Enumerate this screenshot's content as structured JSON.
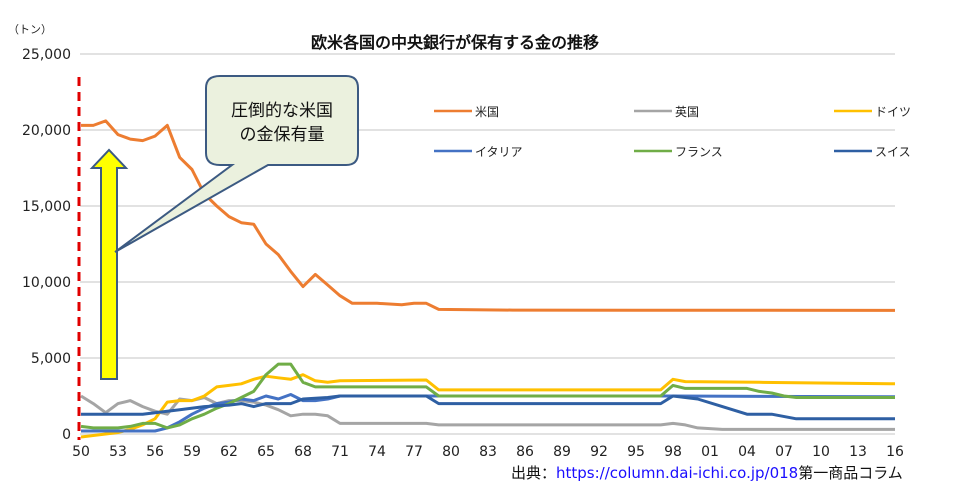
{
  "chart_data": {
    "type": "line",
    "title": "欧米各国の中央銀行が保有する金の推移",
    "ylabel": "（トン）",
    "xlabel": "",
    "xlim": [
      1950,
      2016
    ],
    "ylim": [
      0,
      25000
    ],
    "grid": true,
    "legend_position": "top-right",
    "yticks": [
      0,
      5000,
      10000,
      15000,
      20000,
      25000
    ],
    "ytick_labels": [
      "0",
      "5,000",
      "10,000",
      "15,000",
      "20,000",
      "25,000"
    ],
    "xticks": [
      1950,
      1953,
      1956,
      1959,
      1962,
      1965,
      1968,
      1971,
      1974,
      1977,
      1980,
      1983,
      1986,
      1989,
      1992,
      1995,
      1998,
      2001,
      2004,
      2007,
      2010,
      2013,
      2016
    ],
    "xtick_labels": [
      "50",
      "53",
      "56",
      "59",
      "62",
      "65",
      "68",
      "71",
      "74",
      "77",
      "80",
      "83",
      "86",
      "89",
      "92",
      "95",
      "98",
      "01",
      "04",
      "07",
      "10",
      "13",
      "16"
    ],
    "series": [
      {
        "name": "米国",
        "color": "#ed7d31",
        "points": [
          [
            1950,
            20300
          ],
          [
            1951,
            20300
          ],
          [
            1952,
            20600
          ],
          [
            1953,
            19700
          ],
          [
            1954,
            19400
          ],
          [
            1955,
            19300
          ],
          [
            1956,
            19600
          ],
          [
            1957,
            20300
          ],
          [
            1958,
            18200
          ],
          [
            1959,
            17400
          ],
          [
            1960,
            15800
          ],
          [
            1961,
            15000
          ],
          [
            1962,
            14300
          ],
          [
            1963,
            13900
          ],
          [
            1964,
            13800
          ],
          [
            1965,
            12500
          ],
          [
            1966,
            11800
          ],
          [
            1967,
            10700
          ],
          [
            1968,
            9700
          ],
          [
            1969,
            10500
          ],
          [
            1970,
            9800
          ],
          [
            1971,
            9100
          ],
          [
            1972,
            8600
          ],
          [
            1974,
            8600
          ],
          [
            1976,
            8500
          ],
          [
            1977,
            8600
          ],
          [
            1978,
            8600
          ],
          [
            1979,
            8200
          ],
          [
            1985,
            8150
          ],
          [
            2016,
            8130
          ]
        ]
      },
      {
        "name": "英国",
        "color": "#a5a5a5",
        "points": [
          [
            1950,
            2500
          ],
          [
            1951,
            2000
          ],
          [
            1952,
            1400
          ],
          [
            1953,
            2000
          ],
          [
            1954,
            2200
          ],
          [
            1955,
            1800
          ],
          [
            1956,
            1500
          ],
          [
            1957,
            1300
          ],
          [
            1958,
            2300
          ],
          [
            1959,
            2200
          ],
          [
            1960,
            2400
          ],
          [
            1961,
            2000
          ],
          [
            1962,
            2200
          ],
          [
            1963,
            2200
          ],
          [
            1964,
            2100
          ],
          [
            1965,
            1900
          ],
          [
            1966,
            1600
          ],
          [
            1967,
            1200
          ],
          [
            1968,
            1300
          ],
          [
            1969,
            1300
          ],
          [
            1970,
            1200
          ],
          [
            1971,
            700
          ],
          [
            1978,
            700
          ],
          [
            1979,
            600
          ],
          [
            1997,
            600
          ],
          [
            1998,
            700
          ],
          [
            1999,
            600
          ],
          [
            2000,
            400
          ],
          [
            2002,
            300
          ],
          [
            2016,
            300
          ]
        ]
      },
      {
        "name": "ドイツ",
        "color": "#ffc000",
        "points": [
          [
            1950,
            -200
          ],
          [
            1951,
            -100
          ],
          [
            1952,
            0
          ],
          [
            1953,
            100
          ],
          [
            1954,
            300
          ],
          [
            1955,
            600
          ],
          [
            1956,
            1000
          ],
          [
            1957,
            2100
          ],
          [
            1958,
            2200
          ],
          [
            1959,
            2200
          ],
          [
            1960,
            2500
          ],
          [
            1961,
            3100
          ],
          [
            1962,
            3200
          ],
          [
            1963,
            3300
          ],
          [
            1964,
            3600
          ],
          [
            1965,
            3800
          ],
          [
            1966,
            3700
          ],
          [
            1967,
            3600
          ],
          [
            1968,
            3900
          ],
          [
            1969,
            3500
          ],
          [
            1970,
            3400
          ],
          [
            1971,
            3500
          ],
          [
            1978,
            3550
          ],
          [
            1979,
            2900
          ],
          [
            1997,
            2900
          ],
          [
            1998,
            3600
          ],
          [
            1999,
            3450
          ],
          [
            2005,
            3400
          ],
          [
            2016,
            3300
          ]
        ]
      },
      {
        "name": "イタリア",
        "color": "#4472c4",
        "points": [
          [
            1950,
            200
          ],
          [
            1956,
            200
          ],
          [
            1957,
            400
          ],
          [
            1958,
            800
          ],
          [
            1959,
            1300
          ],
          [
            1960,
            1700
          ],
          [
            1961,
            2000
          ],
          [
            1962,
            2100
          ],
          [
            1963,
            2300
          ],
          [
            1964,
            2200
          ],
          [
            1965,
            2500
          ],
          [
            1966,
            2300
          ],
          [
            1967,
            2600
          ],
          [
            1968,
            2200
          ],
          [
            1969,
            2200
          ],
          [
            1970,
            2300
          ],
          [
            1971,
            2500
          ],
          [
            1978,
            2500
          ],
          [
            1997,
            2500
          ],
          [
            1998,
            2500
          ],
          [
            2016,
            2450
          ]
        ]
      },
      {
        "name": "フランス",
        "color": "#70ad47",
        "points": [
          [
            1950,
            500
          ],
          [
            1951,
            400
          ],
          [
            1953,
            400
          ],
          [
            1954,
            500
          ],
          [
            1955,
            700
          ],
          [
            1956,
            700
          ],
          [
            1957,
            400
          ],
          [
            1958,
            600
          ],
          [
            1959,
            1000
          ],
          [
            1960,
            1300
          ],
          [
            1961,
            1700
          ],
          [
            1962,
            2000
          ],
          [
            1963,
            2400
          ],
          [
            1964,
            2800
          ],
          [
            1965,
            3900
          ],
          [
            1966,
            4600
          ],
          [
            1967,
            4600
          ],
          [
            1968,
            3400
          ],
          [
            1969,
            3100
          ],
          [
            1978,
            3100
          ],
          [
            1979,
            2500
          ],
          [
            1997,
            2500
          ],
          [
            1998,
            3200
          ],
          [
            1999,
            3000
          ],
          [
            2004,
            3000
          ],
          [
            2005,
            2800
          ],
          [
            2006,
            2700
          ],
          [
            2007,
            2500
          ],
          [
            2008,
            2400
          ],
          [
            2016,
            2400
          ]
        ]
      },
      {
        "name": "スイス",
        "color": "#2e5fa3",
        "points": [
          [
            1950,
            1300
          ],
          [
            1955,
            1300
          ],
          [
            1956,
            1400
          ],
          [
            1957,
            1500
          ],
          [
            1958,
            1600
          ],
          [
            1960,
            1800
          ],
          [
            1962,
            1900
          ],
          [
            1963,
            2000
          ],
          [
            1964,
            1800
          ],
          [
            1965,
            2000
          ],
          [
            1967,
            2000
          ],
          [
            1968,
            2300
          ],
          [
            1970,
            2400
          ],
          [
            1971,
            2500
          ],
          [
            1978,
            2500
          ],
          [
            1979,
            2000
          ],
          [
            1997,
            2000
          ],
          [
            1998,
            2500
          ],
          [
            1999,
            2400
          ],
          [
            2000,
            2300
          ],
          [
            2002,
            1800
          ],
          [
            2004,
            1300
          ],
          [
            2006,
            1300
          ],
          [
            2008,
            1000
          ],
          [
            2016,
            1000
          ]
        ]
      }
    ]
  },
  "annotation": {
    "line1": "圧倒的な米国",
    "line2": "の金保有量"
  },
  "source": {
    "prefix": "出典：",
    "link": "https://column.dai-ichi.co.jp/018",
    "suffix": "第一商品コラム"
  }
}
